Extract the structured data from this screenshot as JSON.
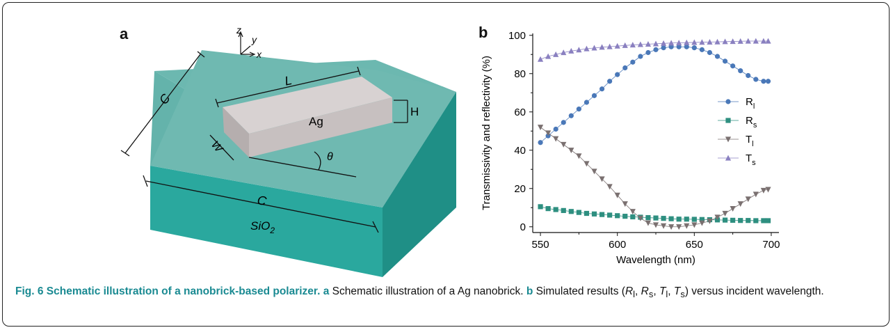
{
  "panels": {
    "a": "a",
    "b": "b"
  },
  "schematic": {
    "axis_labels": {
      "z": "z",
      "y": "y",
      "x": "x"
    },
    "dimension_labels": {
      "C_top": "C",
      "C_front": "C",
      "L": "L",
      "H": "H",
      "W": "W",
      "theta": "θ"
    },
    "material_brick": "Ag",
    "substrate_main": "SiO",
    "substrate_sub": "2",
    "colors": {
      "substrate_top": "#6cb8b0",
      "substrate_front": "#2aa89e",
      "substrate_side": "#1f8f86",
      "brick_top": "#d8d2d2",
      "brick_front": "#c7c0c0",
      "brick_side": "#b5aeae"
    }
  },
  "chart_data": {
    "type": "line",
    "xlabel": "Wavelength (nm)",
    "ylabel": "Transmissivity and reflectivity (%)",
    "xlim": [
      545,
      705
    ],
    "ylim": [
      -3,
      101
    ],
    "xticks": [
      550,
      600,
      650,
      700
    ],
    "yticks": [
      0,
      20,
      40,
      60,
      80,
      100
    ],
    "x": [
      550,
      555,
      560,
      565,
      570,
      575,
      580,
      585,
      590,
      595,
      600,
      605,
      610,
      615,
      620,
      625,
      630,
      635,
      640,
      645,
      650,
      655,
      660,
      665,
      670,
      675,
      680,
      685,
      690,
      695,
      698
    ],
    "legend_position": "right",
    "series": [
      {
        "name": "R",
        "subscript": "l",
        "marker": "circle",
        "color": "#4a78b8",
        "values": [
          44,
          47.5,
          51,
          54.5,
          58,
          61.5,
          65,
          68.5,
          72,
          76,
          79.5,
          83,
          86,
          89,
          91,
          92.5,
          93.5,
          94,
          94,
          94,
          93.5,
          92.5,
          91,
          89,
          86.5,
          84,
          81.5,
          79,
          77,
          76,
          76
        ]
      },
      {
        "name": "R",
        "subscript": "s",
        "marker": "square",
        "color": "#2e8f80",
        "values": [
          10.5,
          9.5,
          9,
          8.5,
          8,
          7.5,
          7,
          6.7,
          6.4,
          6.1,
          5.8,
          5.5,
          5.2,
          5,
          4.8,
          4.6,
          4.4,
          4.2,
          4,
          4,
          3.9,
          3.8,
          3.7,
          3.6,
          3.5,
          3.4,
          3.3,
          3.3,
          3.2,
          3.2,
          3.2
        ]
      },
      {
        "name": "T",
        "subscript": "l",
        "marker": "triangle-down",
        "color": "#7a7070",
        "values": [
          52,
          49,
          46,
          43,
          40,
          37,
          33,
          29,
          25,
          21,
          16.5,
          12,
          8,
          4.5,
          2,
          1,
          0.5,
          0,
          0,
          0.5,
          1,
          2,
          3,
          5,
          7,
          9.5,
          12,
          14.5,
          17,
          19,
          19.5
        ]
      },
      {
        "name": "T",
        "subscript": "s",
        "marker": "triangle-up",
        "color": "#8a80c0",
        "values": [
          87.5,
          89,
          90,
          91,
          91.8,
          92.4,
          93,
          93.4,
          93.8,
          94.1,
          94.4,
          94.7,
          95,
          95.2,
          95.4,
          95.6,
          95.8,
          96,
          96.1,
          96.2,
          96.3,
          96.4,
          96.5,
          96.6,
          96.7,
          96.8,
          96.9,
          97,
          97,
          97,
          97
        ]
      }
    ]
  },
  "caption": {
    "title": "Fig. 6 Schematic illustration of a nanobrick-based polarizer.",
    "a_ref": "a",
    "a_text": " Schematic illustration of a Ag nanobrick. ",
    "b_ref": "b",
    "b_text_1": " Simulated results (",
    "b_vars": "R",
    "b_text_tail": ") versus incident wavelength."
  }
}
